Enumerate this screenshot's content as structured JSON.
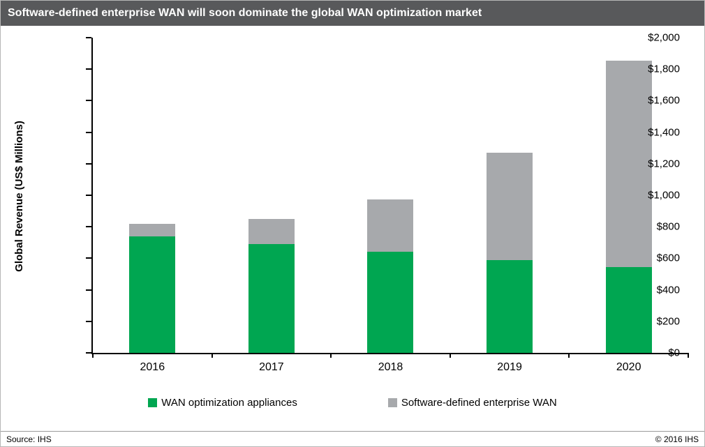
{
  "header": {
    "title": "Software-defined enterprise WAN will soon dominate the global WAN optimization market"
  },
  "footer": {
    "source": "Source: IHS",
    "copyright": "© 2016 IHS"
  },
  "chart_data": {
    "type": "bar",
    "stacked": true,
    "title": "Software-defined enterprise WAN will soon dominate the global WAN optimization market",
    "categories": [
      "2016",
      "2017",
      "2018",
      "2019",
      "2020"
    ],
    "series": [
      {
        "name": "WAN optimization appliances",
        "color": "#00a651",
        "values": [
          740,
          690,
          640,
          590,
          545
        ]
      },
      {
        "name": "Software-defined enterprise WAN",
        "color": "#a7a9ac",
        "values": [
          80,
          160,
          335,
          680,
          1310
        ]
      }
    ],
    "totals": [
      820,
      850,
      975,
      1270,
      1855
    ],
    "xlabel": "",
    "ylabel": "Global Revenue (US$ Millions)",
    "ylim": [
      0,
      2000
    ],
    "ytick_step": 200,
    "ytick_prefix": "$",
    "grid": false,
    "legend_position": "bottom"
  }
}
